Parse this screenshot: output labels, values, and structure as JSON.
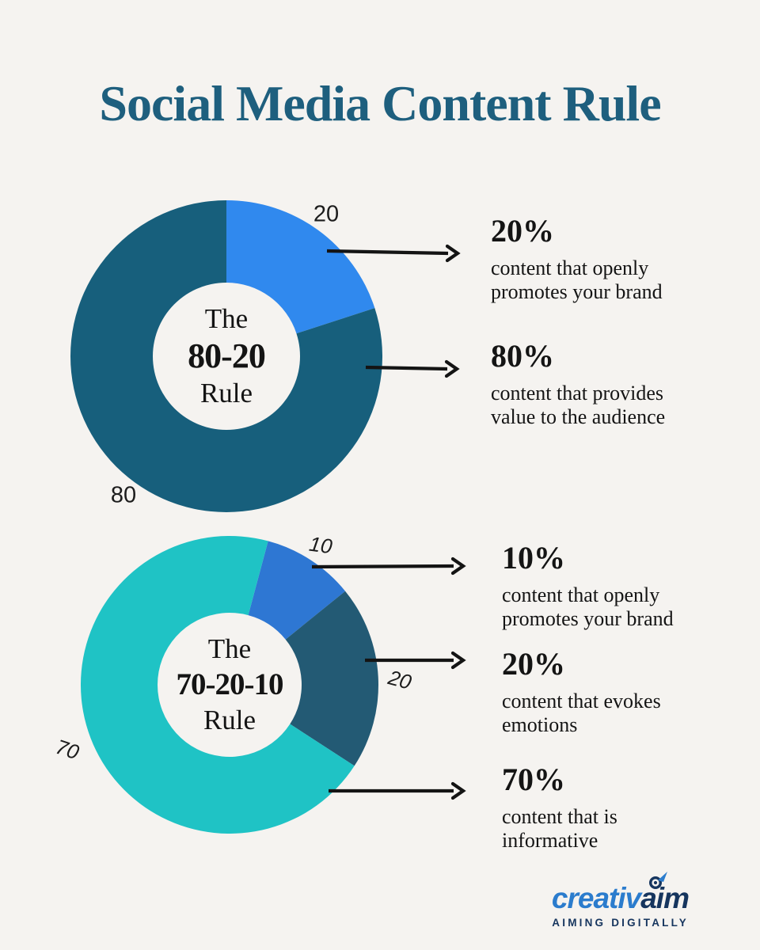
{
  "title": {
    "text": "Social Media Content Rule",
    "color": "#1e5f7e"
  },
  "colors": {
    "background": "#f5f3f0",
    "ink": "#141414",
    "chart1_dark_teal": "#175f7c",
    "chart1_blue": "#3089ee",
    "chart2_turquoise": "#1fc3c5",
    "chart2_slate": "#235a74",
    "chart2_blue": "#2e77d3"
  },
  "chart_data": [
    {
      "type": "pie",
      "subtype": "donut",
      "title": "The 80-20 Rule",
      "center_label": {
        "line1": "The",
        "line2": "80-20",
        "line3": "Rule"
      },
      "rotation_deg": 0,
      "categories": [
        "content that openly promotes your brand",
        "content that provides value to the audience"
      ],
      "values": [
        20,
        80
      ],
      "slice_labels": [
        "20",
        "80"
      ],
      "colors": [
        "#3089ee",
        "#175f7c"
      ],
      "legend": "none",
      "callouts": [
        {
          "pct": "20%",
          "line1": "content that openly",
          "line2": "promotes your brand"
        },
        {
          "pct": "80%",
          "line1": "content that provides",
          "line2": "value to the audience"
        }
      ]
    },
    {
      "type": "pie",
      "subtype": "donut",
      "title": "The 70-20-10 Rule",
      "center_label": {
        "line1": "The",
        "line2": "70-20-10",
        "line3": "Rule"
      },
      "rotation_deg": 15,
      "categories": [
        "content that openly promotes your brand",
        "content that evokes emotions",
        "content that is informative"
      ],
      "values": [
        10,
        20,
        70
      ],
      "slice_labels": [
        "10",
        "20",
        "70"
      ],
      "colors": [
        "#2e77d3",
        "#235a74",
        "#1fc3c5"
      ],
      "legend": "none",
      "callouts": [
        {
          "pct": "10%",
          "line1": "content that openly",
          "line2": "promotes your brand"
        },
        {
          "pct": "20%",
          "line1": "content that evokes",
          "line2": "emotions"
        },
        {
          "pct": "70%",
          "line1": "content that is",
          "line2": "informative"
        }
      ]
    }
  ],
  "logo": {
    "brand_left": "creativ",
    "brand_right": "aim",
    "tagline": "AIMING DIGITALLY",
    "color_left": "#2b7ccd",
    "color_right": "#16355e"
  }
}
